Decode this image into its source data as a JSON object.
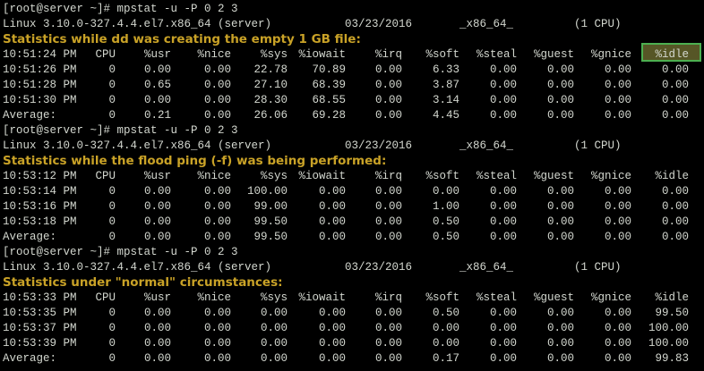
{
  "sections": [
    {
      "command": "[root@server ~]# mpstat -u -P 0 2 3",
      "info": [
        "Linux 3.10.0-327.4.4.el7.x86_64 (server)",
        "03/23/2016",
        "_x86_64_",
        "(1 CPU)"
      ],
      "heading": "Statistics while dd was creating the empty 1 GB file:",
      "header": [
        "10:51:24 PM",
        "CPU",
        "%usr",
        "%nice",
        "%sys",
        "%iowait",
        "%irq",
        "%soft",
        "%steal",
        "%guest",
        "%gnice",
        "%idle"
      ],
      "rows": [
        [
          "10:51:26 PM",
          "0",
          "0.00",
          "0.00",
          "22.78",
          "70.89",
          "0.00",
          "6.33",
          "0.00",
          "0.00",
          "0.00",
          "0.00"
        ],
        [
          "10:51:28 PM",
          "0",
          "0.65",
          "0.00",
          "27.10",
          "68.39",
          "0.00",
          "3.87",
          "0.00",
          "0.00",
          "0.00",
          "0.00"
        ],
        [
          "10:51:30 PM",
          "0",
          "0.00",
          "0.00",
          "28.30",
          "68.55",
          "0.00",
          "3.14",
          "0.00",
          "0.00",
          "0.00",
          "0.00"
        ]
      ],
      "average": [
        "Average:",
        "0",
        "0.21",
        "0.00",
        "26.06",
        "69.28",
        "0.00",
        "4.45",
        "0.00",
        "0.00",
        "0.00",
        "0.00"
      ]
    },
    {
      "command": "[root@server ~]# mpstat -u -P 0 2 3",
      "info": [
        "Linux 3.10.0-327.4.4.el7.x86_64 (server)",
        "03/23/2016",
        "_x86_64_",
        "(1 CPU)"
      ],
      "heading": "Statistics while the flood ping (-f) was being performed:",
      "header": [
        "10:53:12 PM",
        "CPU",
        "%usr",
        "%nice",
        "%sys",
        "%iowait",
        "%irq",
        "%soft",
        "%steal",
        "%guest",
        "%gnice",
        "%idle"
      ],
      "rows": [
        [
          "10:53:14 PM",
          "0",
          "0.00",
          "0.00",
          "100.00",
          "0.00",
          "0.00",
          "0.00",
          "0.00",
          "0.00",
          "0.00",
          "0.00"
        ],
        [
          "10:53:16 PM",
          "0",
          "0.00",
          "0.00",
          "99.00",
          "0.00",
          "0.00",
          "1.00",
          "0.00",
          "0.00",
          "0.00",
          "0.00"
        ],
        [
          "10:53:18 PM",
          "0",
          "0.00",
          "0.00",
          "99.50",
          "0.00",
          "0.00",
          "0.50",
          "0.00",
          "0.00",
          "0.00",
          "0.00"
        ]
      ],
      "average": [
        "Average:",
        "0",
        "0.00",
        "0.00",
        "99.50",
        "0.00",
        "0.00",
        "0.50",
        "0.00",
        "0.00",
        "0.00",
        "0.00"
      ]
    },
    {
      "command": "[root@server ~]# mpstat -u -P 0 2 3",
      "info": [
        "Linux 3.10.0-327.4.4.el7.x86_64 (server)",
        "03/23/2016",
        "_x86_64_",
        "(1 CPU)"
      ],
      "heading": "Statistics under \"normal\" circumstances:",
      "header": [
        "10:53:33 PM",
        "CPU",
        "%usr",
        "%nice",
        "%sys",
        "%iowait",
        "%irq",
        "%soft",
        "%steal",
        "%guest",
        "%gnice",
        "%idle"
      ],
      "rows": [
        [
          "10:53:35 PM",
          "0",
          "0.00",
          "0.00",
          "0.00",
          "0.00",
          "0.00",
          "0.50",
          "0.00",
          "0.00",
          "0.00",
          "99.50"
        ],
        [
          "10:53:37 PM",
          "0",
          "0.00",
          "0.00",
          "0.00",
          "0.00",
          "0.00",
          "0.00",
          "0.00",
          "0.00",
          "0.00",
          "100.00"
        ],
        [
          "10:53:39 PM",
          "0",
          "0.00",
          "0.00",
          "0.00",
          "0.00",
          "0.00",
          "0.00",
          "0.00",
          "0.00",
          "0.00",
          "100.00"
        ]
      ],
      "average": [
        "Average:",
        "0",
        "0.00",
        "0.00",
        "0.00",
        "0.00",
        "0.00",
        "0.17",
        "0.00",
        "0.00",
        "0.00",
        "99.83"
      ]
    }
  ]
}
